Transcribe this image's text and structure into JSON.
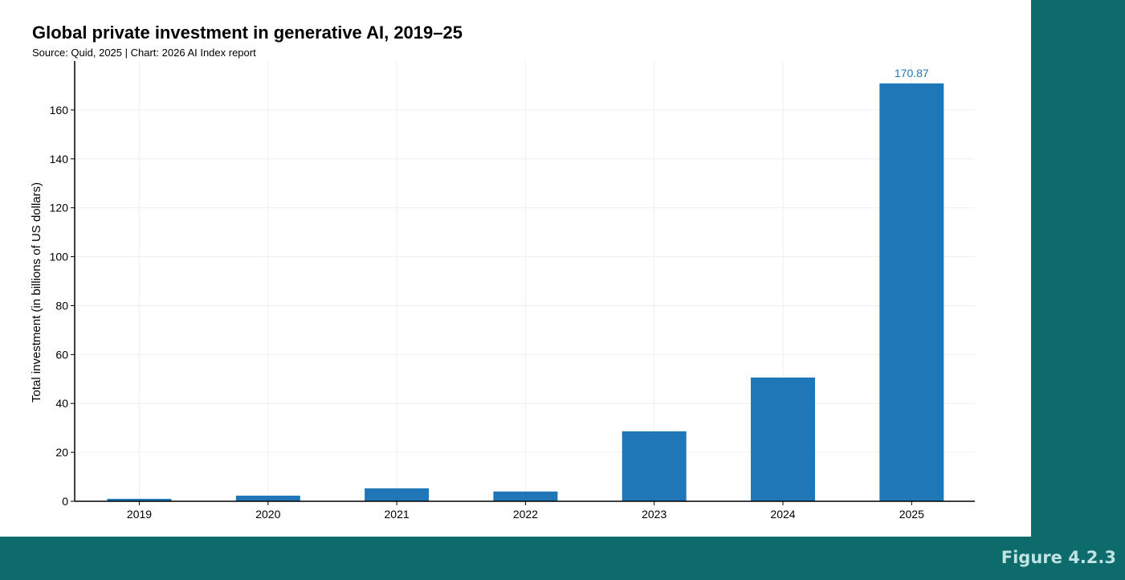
{
  "chart_data": {
    "type": "bar",
    "title": "Global private investment in generative AI, 2019–25",
    "subtitle": "Source: Quid, 2025 | Chart: 2026 AI Index report",
    "categories": [
      "2019",
      "2020",
      "2021",
      "2022",
      "2023",
      "2024",
      "2025"
    ],
    "values": [
      1.0,
      2.3,
      5.3,
      4.0,
      28.6,
      50.6,
      170.87
    ],
    "data_labels": [
      "",
      "",
      "",
      "",
      "",
      "",
      "170.87"
    ],
    "xlabel": "",
    "ylabel": "Total investment (in billions of US dollars)",
    "ylim": [
      0,
      180
    ],
    "yticks": [
      0,
      20,
      40,
      60,
      80,
      100,
      120,
      140,
      160
    ],
    "grid": true,
    "bar_color": "#1f77b8",
    "label_color": "#1f77b8"
  },
  "figure_label": "Figure 4.2.3",
  "colors": {
    "background": "#0d6b6b",
    "panel": "#ffffff"
  }
}
